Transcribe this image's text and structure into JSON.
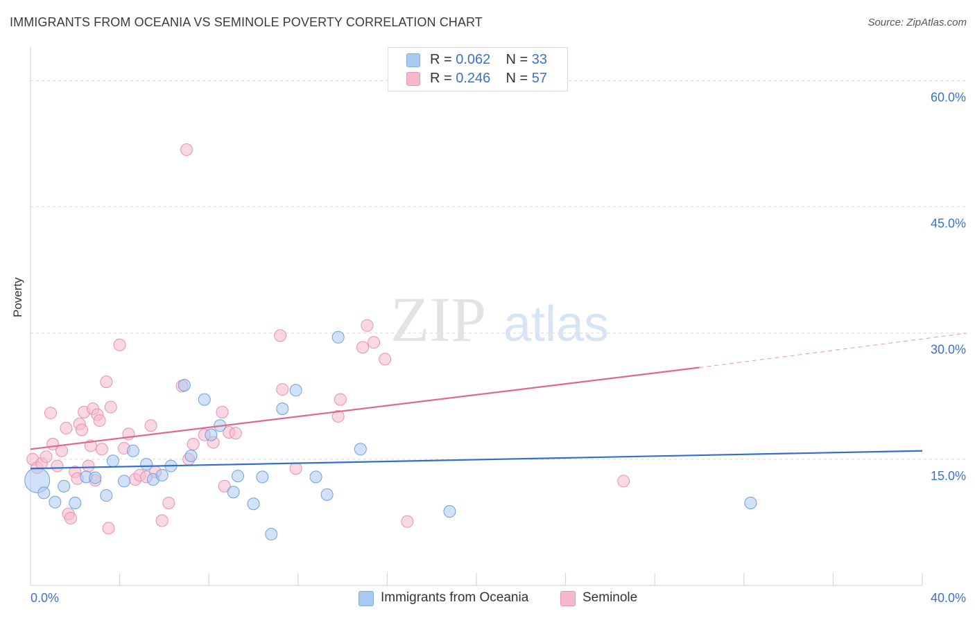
{
  "header": {
    "title": "IMMIGRANTS FROM OCEANIA VS SEMINOLE POVERTY CORRELATION CHART",
    "source": "Source: ZipAtlas.com"
  },
  "watermark": {
    "zip": "ZIP",
    "atlas": "atlas"
  },
  "legend": {
    "rows": [
      {
        "r_label": "R = ",
        "r_value": "0.062",
        "n_label": "N = ",
        "n_value": "33",
        "color": "#a9c8f2"
      },
      {
        "r_label": "R = ",
        "r_value": "0.246",
        "n_label": "N = ",
        "n_value": "57",
        "color": "#f6b8cc"
      }
    ]
  },
  "bottom_legend": {
    "series1": "Immigrants from Oceania",
    "series2": "Seminole"
  },
  "colors": {
    "blue_fill": "#a9c8f2",
    "blue_line": "#2f6fcf",
    "pink_fill": "#f6b8cc",
    "pink_line": "#e0678f",
    "axis_label": "#3a72c9",
    "grid": "#d8d8d8"
  },
  "chart_data": {
    "type": "scatter",
    "title": "IMMIGRANTS FROM OCEANIA VS SEMINOLE POVERTY CORRELATION CHART",
    "xlabel": "",
    "ylabel": "Poverty",
    "xlim": [
      0,
      40
    ],
    "ylim": [
      0,
      63
    ],
    "x_tick_labels": [
      "0.0%",
      "40.0%"
    ],
    "y_ticks": [
      15,
      30,
      45,
      60
    ],
    "y_tick_labels": [
      "15.0%",
      "30.0%",
      "45.0%",
      "60.0%"
    ],
    "grid": true,
    "legend_position": "top-center",
    "series": [
      {
        "name": "Immigrants from Oceania",
        "color": "#a9c8f2",
        "r": 0.062,
        "n": 33,
        "points": [
          [
            0.3,
            12.5
          ],
          [
            0.6,
            11.0
          ],
          [
            1.1,
            9.9
          ],
          [
            1.5,
            11.8
          ],
          [
            2.0,
            9.8
          ],
          [
            2.5,
            12.9
          ],
          [
            2.9,
            12.8
          ],
          [
            3.4,
            10.7
          ],
          [
            3.7,
            14.8
          ],
          [
            4.2,
            12.4
          ],
          [
            4.6,
            16.0
          ],
          [
            5.2,
            14.4
          ],
          [
            5.5,
            12.6
          ],
          [
            5.9,
            13.1
          ],
          [
            6.3,
            14.2
          ],
          [
            6.9,
            23.8
          ],
          [
            7.2,
            15.4
          ],
          [
            7.8,
            22.1
          ],
          [
            8.1,
            17.9
          ],
          [
            8.5,
            19.0
          ],
          [
            9.1,
            11.1
          ],
          [
            9.3,
            13.0
          ],
          [
            10.0,
            9.7
          ],
          [
            10.4,
            12.9
          ],
          [
            10.8,
            6.1
          ],
          [
            11.3,
            21.0
          ],
          [
            11.9,
            23.2
          ],
          [
            12.8,
            12.9
          ],
          [
            13.3,
            10.8
          ],
          [
            13.8,
            29.5
          ],
          [
            14.8,
            16.2
          ],
          [
            18.8,
            8.8
          ],
          [
            32.3,
            9.8
          ]
        ],
        "trend": {
          "x": [
            0,
            40
          ],
          "y": [
            13.9,
            16.0
          ]
        }
      },
      {
        "name": "Seminole",
        "color": "#f6b8cc",
        "r": 0.246,
        "n": 57,
        "points": [
          [
            0.1,
            15.0
          ],
          [
            0.3,
            14.0
          ],
          [
            0.5,
            14.5
          ],
          [
            0.7,
            15.3
          ],
          [
            0.9,
            20.5
          ],
          [
            1.0,
            16.8
          ],
          [
            1.2,
            14.2
          ],
          [
            1.4,
            16.0
          ],
          [
            1.6,
            18.7
          ],
          [
            1.7,
            8.5
          ],
          [
            1.8,
            8.0
          ],
          [
            2.0,
            13.5
          ],
          [
            2.1,
            12.7
          ],
          [
            2.2,
            19.2
          ],
          [
            2.3,
            18.5
          ],
          [
            2.4,
            20.6
          ],
          [
            2.6,
            14.2
          ],
          [
            2.7,
            16.6
          ],
          [
            2.8,
            21.0
          ],
          [
            3.0,
            20.3
          ],
          [
            3.1,
            19.6
          ],
          [
            3.2,
            16.2
          ],
          [
            3.4,
            24.2
          ],
          [
            3.5,
            6.8
          ],
          [
            3.6,
            21.2
          ],
          [
            4.0,
            28.6
          ],
          [
            4.2,
            16.3
          ],
          [
            4.4,
            18.0
          ],
          [
            4.7,
            12.6
          ],
          [
            4.9,
            13.1
          ],
          [
            5.2,
            12.9
          ],
          [
            5.4,
            19.0
          ],
          [
            5.6,
            13.5
          ],
          [
            5.9,
            7.7
          ],
          [
            6.2,
            9.8
          ],
          [
            6.8,
            23.7
          ],
          [
            7.1,
            15.0
          ],
          [
            7.3,
            16.8
          ],
          [
            7.0,
            51.8
          ],
          [
            7.8,
            17.9
          ],
          [
            8.2,
            17.0
          ],
          [
            8.6,
            20.6
          ],
          [
            8.7,
            11.8
          ],
          [
            8.9,
            18.2
          ],
          [
            9.2,
            18.1
          ],
          [
            11.2,
            29.7
          ],
          [
            11.3,
            23.3
          ],
          [
            11.9,
            13.9
          ],
          [
            13.8,
            20.1
          ],
          [
            13.9,
            22.1
          ],
          [
            14.9,
            28.3
          ],
          [
            15.1,
            30.9
          ],
          [
            15.4,
            28.9
          ],
          [
            15.9,
            26.9
          ],
          [
            16.9,
            7.6
          ],
          [
            26.6,
            12.4
          ],
          [
            2.9,
            12.5
          ]
        ],
        "trend": {
          "x": [
            0,
            30
          ],
          "y": [
            16.2,
            25.9
          ]
        },
        "trend_dashed": {
          "x": [
            30,
            40
          ],
          "y": [
            25.9,
            29.3
          ]
        }
      }
    ]
  }
}
